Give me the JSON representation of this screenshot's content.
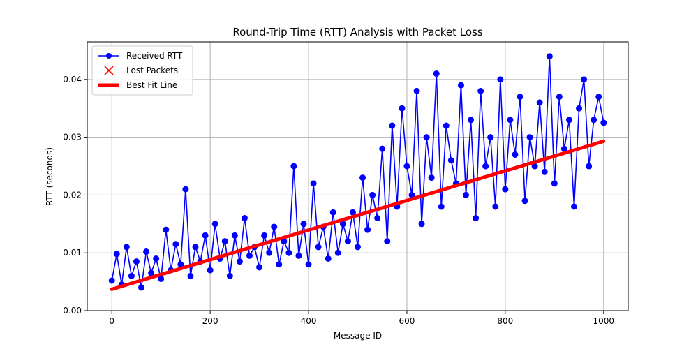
{
  "chart_data": {
    "type": "line",
    "title": "Round-Trip Time (RTT) Analysis with Packet Loss",
    "xlabel": "Message ID",
    "ylabel": "RTT (seconds)",
    "xlim": [
      -50,
      1050
    ],
    "ylim": [
      0.0,
      0.0465
    ],
    "x_ticks": [
      0,
      200,
      400,
      600,
      800,
      1000
    ],
    "x_tick_labels": [
      "0",
      "200",
      "400",
      "600",
      "800",
      "1000"
    ],
    "y_ticks": [
      0.0,
      0.01,
      0.02,
      0.03,
      0.04
    ],
    "y_tick_labels": [
      "0.00",
      "0.01",
      "0.02",
      "0.03",
      "0.04"
    ],
    "grid": true,
    "legend_position": "top-left",
    "legend": [
      {
        "label": "Received RTT",
        "marker": "circle-line",
        "color": "#0000ff"
      },
      {
        "label": "Lost Packets",
        "marker": "x",
        "color": "#ff0000"
      },
      {
        "label": "Best Fit Line",
        "marker": "thick-line",
        "color": "#ff0000"
      }
    ],
    "series": [
      {
        "name": "Received RTT",
        "color": "#0000ff",
        "x": [
          0,
          10,
          20,
          30,
          40,
          50,
          60,
          70,
          80,
          90,
          100,
          110,
          120,
          130,
          140,
          150,
          160,
          170,
          180,
          190,
          200,
          210,
          220,
          230,
          240,
          250,
          260,
          270,
          280,
          290,
          300,
          310,
          320,
          330,
          340,
          350,
          360,
          370,
          380,
          390,
          400,
          410,
          420,
          430,
          440,
          450,
          460,
          470,
          480,
          490,
          500,
          510,
          520,
          530,
          540,
          550,
          560,
          570,
          580,
          590,
          600,
          610,
          620,
          630,
          640,
          650,
          660,
          670,
          680,
          690,
          700,
          710,
          720,
          730,
          740,
          750,
          760,
          770,
          780,
          790,
          800,
          810,
          820,
          830,
          840,
          850,
          860,
          870,
          880,
          890,
          900,
          910,
          920,
          930,
          940,
          950,
          960,
          970,
          980,
          990,
          1000
        ],
        "y": [
          0.0052,
          0.0098,
          0.0045,
          0.011,
          0.006,
          0.0085,
          0.004,
          0.0102,
          0.0065,
          0.009,
          0.0055,
          0.014,
          0.007,
          0.0115,
          0.008,
          0.021,
          0.006,
          0.011,
          0.0085,
          0.013,
          0.007,
          0.015,
          0.009,
          0.012,
          0.006,
          0.013,
          0.0085,
          0.016,
          0.0095,
          0.011,
          0.0075,
          0.013,
          0.01,
          0.0145,
          0.008,
          0.012,
          0.01,
          0.025,
          0.0095,
          0.015,
          0.008,
          0.022,
          0.011,
          0.0145,
          0.009,
          0.017,
          0.01,
          0.015,
          0.012,
          0.017,
          0.011,
          0.023,
          0.014,
          0.02,
          0.016,
          0.028,
          0.012,
          0.032,
          0.018,
          0.035,
          0.025,
          0.02,
          0.038,
          0.015,
          0.03,
          0.023,
          0.041,
          0.018,
          0.032,
          0.026,
          0.022,
          0.039,
          0.02,
          0.033,
          0.016,
          0.038,
          0.025,
          0.03,
          0.018,
          0.04,
          0.021,
          0.033,
          0.027,
          0.037,
          0.019,
          0.03,
          0.025,
          0.036,
          0.024,
          0.044,
          0.022,
          0.037,
          0.028,
          0.033,
          0.018,
          0.035,
          0.04,
          0.025,
          0.033,
          0.037,
          0.0325
        ]
      },
      {
        "name": "Best Fit Line",
        "color": "#ff0000",
        "x": [
          0,
          1000
        ],
        "y": [
          0.0037,
          0.0293
        ]
      }
    ]
  }
}
